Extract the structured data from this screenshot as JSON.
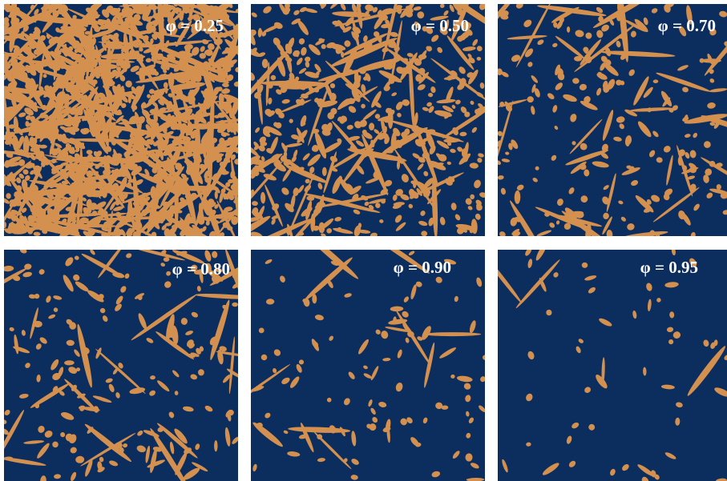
{
  "panels": [
    {
      "label": "φ = 0.25"
    },
    {
      "label": "φ = 0.50"
    },
    {
      "label": "φ = 0.70"
    },
    {
      "label": "φ = 0.80"
    },
    {
      "label": "φ = 0.90"
    },
    {
      "label": "φ = 0.95"
    }
  ]
}
